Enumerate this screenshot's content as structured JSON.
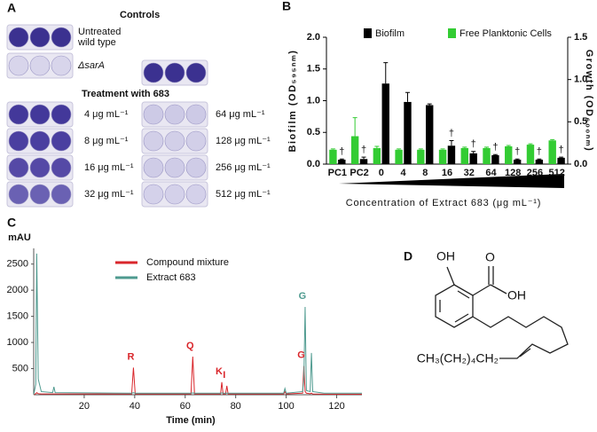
{
  "panel_labels": [
    "A",
    "B",
    "C",
    "D"
  ],
  "panel_a": {
    "title": "Controls",
    "controls": [
      {
        "label": [
          "Untreated",
          "wild type"
        ],
        "color": "#3b3190"
      },
      {
        "label": [
          "ΔsarA"
        ],
        "color": "#d8d5eb"
      },
      {
        "color": "#3b3190"
      }
    ],
    "treatment_title": "Treatment with 683",
    "treatments": [
      {
        "label": "4 μg mL⁻¹",
        "color": "#43389a"
      },
      {
        "label": "8 μg mL⁻¹",
        "color": "#4a3fa0"
      },
      {
        "label": "16 μg mL⁻¹",
        "color": "#5549a6"
      },
      {
        "label": "32 μg mL⁻¹",
        "color": "#6a61b3"
      },
      {
        "label": "64 μg mL⁻¹",
        "color": "#cdcae6"
      },
      {
        "label": "128 μg mL⁻¹",
        "color": "#d2cfe8"
      },
      {
        "label": "256 μg mL⁻¹",
        "color": "#cfcce7"
      },
      {
        "label": "512 μg mL⁻¹",
        "color": "#d4d1ea"
      }
    ]
  },
  "chart_data": [
    {
      "type": "bar",
      "xlabel": "Concentration of Extract 683 (μg mL⁻¹)",
      "ylabel": "Biofilm (OD₅₉₅ₙₘ)",
      "y2label": "Growth (OD₆₀₀ₙₘ)",
      "categories": [
        "PC1",
        "PC2",
        "0",
        "4",
        "8",
        "16",
        "32",
        "64",
        "128",
        "256",
        "512"
      ],
      "series": [
        {
          "name": "Biofilm",
          "color": "#000000",
          "values": [
            0.07,
            0.08,
            1.27,
            0.98,
            0.93,
            0.29,
            0.17,
            0.14,
            0.07,
            0.07,
            0.1
          ],
          "errors": [
            0.01,
            0.03,
            0.33,
            0.15,
            0.02,
            0.08,
            0.03,
            0.01,
            0.01,
            0.01,
            0.01
          ]
        },
        {
          "name": "Free Planktonic Cells",
          "color": "#33cc33",
          "axis": "y2",
          "values": [
            0.17,
            0.33,
            0.19,
            0.17,
            0.17,
            0.17,
            0.19,
            0.19,
            0.21,
            0.23,
            0.28
          ],
          "errors": [
            0.01,
            0.22,
            0.02,
            0.01,
            0.01,
            0.01,
            0.01,
            0.01,
            0.01,
            0.01,
            0.01
          ]
        }
      ],
      "annotations": [
        {
          "text": "†",
          "category": "PC1"
        },
        {
          "text": "†",
          "category": "PC2"
        },
        {
          "text": "†",
          "category": "16"
        },
        {
          "text": "†",
          "category": "32"
        },
        {
          "text": "†",
          "category": "64"
        },
        {
          "text": "†",
          "category": "128"
        },
        {
          "text": "†",
          "category": "256"
        },
        {
          "text": "†",
          "category": "512"
        }
      ],
      "ylim": [
        0,
        2.0
      ],
      "yticks": [
        {
          "value": 0,
          "label": "0.0"
        },
        {
          "value": 0.5,
          "label": "0.5"
        },
        {
          "value": 1,
          "label": "1.0"
        },
        {
          "value": 1.5,
          "label": "1.5"
        },
        {
          "value": 2,
          "label": "2.0"
        }
      ],
      "y2lim": [
        0,
        1.5
      ],
      "y2ticks": [
        {
          "value": 0,
          "label": "0.0"
        },
        {
          "value": 0.5,
          "label": "0.5"
        },
        {
          "value": 1,
          "label": "1.0"
        },
        {
          "value": 1.5,
          "label": "1.5"
        }
      ]
    },
    {
      "type": "line",
      "xlabel": "Time (min)",
      "ylabel": "mAU",
      "x": [
        0,
        0.8,
        1.2,
        1.8,
        3,
        7.5,
        8,
        8.5,
        38.8,
        39.5,
        40.2,
        62.3,
        63,
        63.7,
        74,
        74.5,
        75,
        76,
        76.5,
        77,
        99,
        99.5,
        100,
        106.5,
        107,
        107.5,
        108,
        109.5,
        110,
        110.5,
        115,
        130
      ],
      "series": [
        {
          "name": "Compound mixture",
          "color": "#d9262b",
          "values": [
            0,
            20,
            40,
            20,
            15,
            15,
            15,
            15,
            15,
            520,
            15,
            15,
            730,
            15,
            15,
            240,
            15,
            15,
            170,
            15,
            15,
            60,
            15,
            30,
            550,
            60,
            30,
            20,
            30,
            15,
            10,
            10
          ]
        },
        {
          "name": "Extract 683",
          "color": "#4e9a8f",
          "values": [
            0,
            200,
            2700,
            300,
            60,
            40,
            150,
            40,
            30,
            40,
            30,
            30,
            35,
            30,
            30,
            35,
            30,
            30,
            30,
            30,
            30,
            120,
            30,
            60,
            300,
            1680,
            80,
            60,
            800,
            60,
            30,
            30
          ]
        }
      ],
      "peak_labels": [
        {
          "text": "R",
          "x": 39.5,
          "series": 0
        },
        {
          "text": "Q",
          "x": 63,
          "series": 0
        },
        {
          "text": "K",
          "x": 74.5,
          "series": 0
        },
        {
          "text": "I",
          "x": 76.5,
          "series": 0
        },
        {
          "text": "G",
          "x": 107,
          "series": 0
        },
        {
          "text": "G",
          "x": 107.5,
          "series": 1
        }
      ],
      "xlim": [
        0,
        130
      ],
      "xticks": [
        20,
        40,
        60,
        80,
        100,
        120
      ],
      "ylim": [
        0,
        2800
      ],
      "yticks": [
        500,
        1000,
        1500,
        2000,
        2500
      ]
    }
  ],
  "panel_d": {
    "hydroxyl": "OH",
    "carbonyl": "O",
    "acid_hydroxyl": "OH",
    "chain": "CH₃(CH₂)₄CH₂"
  }
}
